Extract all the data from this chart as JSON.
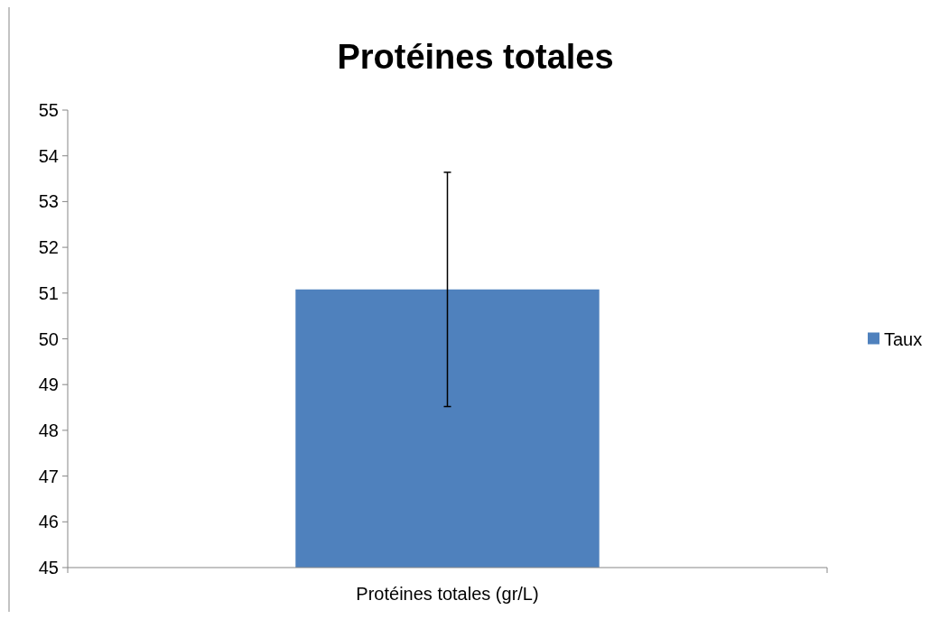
{
  "chart_data": {
    "type": "bar",
    "title": "Protéines totales",
    "categories": [
      "Protéines totales (gr/L)"
    ],
    "series": [
      {
        "name": "Taux",
        "color": "#4f81bd",
        "values": [
          51.08
        ],
        "errors": [
          2.56
        ]
      }
    ],
    "ylim": [
      45,
      55
    ],
    "yticks": [
      45,
      46,
      47,
      48,
      49,
      50,
      51,
      52,
      53,
      54,
      55
    ],
    "grid": false,
    "legend": "right"
  }
}
